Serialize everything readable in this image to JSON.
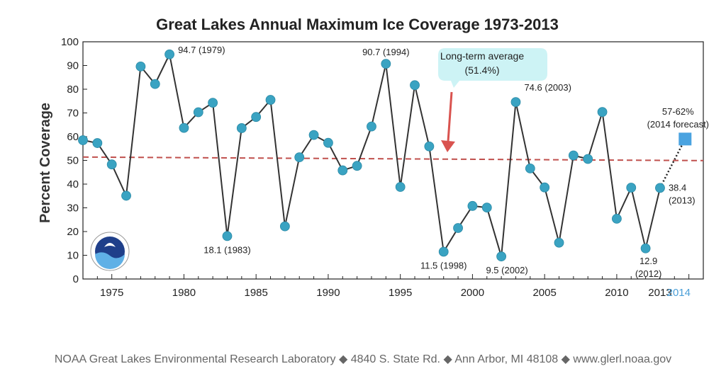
{
  "chart_data": {
    "type": "line",
    "title": "Great Lakes Annual Maximum Ice Coverage 1973-2013",
    "ylabel": "Percent Coverage",
    "xlim": [
      1973,
      2016
    ],
    "ylim": [
      0,
      100
    ],
    "y_ticks": [
      0,
      10,
      20,
      30,
      40,
      50,
      60,
      70,
      80,
      90,
      100
    ],
    "x_ticks": [
      "1975",
      "1980",
      "1985",
      "1990",
      "1995",
      "2000",
      "2005",
      "2010",
      "2013"
    ],
    "x_tick_values": [
      1975,
      1980,
      1985,
      1990,
      1995,
      2000,
      2005,
      2010,
      2013
    ],
    "forecast_tick": {
      "label": "2014",
      "x": 2014,
      "color": "#4a9fd8"
    },
    "grid": false,
    "series": [
      {
        "x": [
          1973,
          1974,
          1975,
          1976,
          1977,
          1978,
          1979,
          1980,
          1981,
          1982,
          1983,
          1984,
          1985,
          1986,
          1987,
          1988,
          1989,
          1990,
          1991,
          1992,
          1993,
          1994,
          1995,
          1996,
          1997,
          1998,
          1999,
          2000,
          2001,
          2002,
          2003,
          2004,
          2005,
          2006,
          2007,
          2008,
          2009,
          2010,
          2011,
          2012,
          2013
        ],
        "values": [
          58.5,
          57.3,
          48.3,
          35.1,
          89.6,
          82.2,
          94.7,
          63.7,
          70.3,
          74.3,
          18.1,
          63.6,
          68.3,
          75.5,
          22.2,
          51.3,
          60.7,
          57.4,
          45.8,
          47.7,
          64.3,
          90.7,
          38.8,
          81.7,
          55.9,
          11.5,
          21.5,
          30.8,
          30.1,
          9.5,
          74.6,
          46.6,
          38.6,
          15.3,
          52.1,
          50.6,
          70.4,
          25.4,
          38.5,
          12.9,
          38.4
        ],
        "color": "#333333",
        "marker_color": "#3aa3c2"
      }
    ],
    "average": {
      "value": 51.4,
      "color": "#c0504d",
      "style": "dashed"
    },
    "forecast": {
      "x": 2014,
      "value": 59.0,
      "range_label": "57-62%",
      "label": "(2014 forecast)",
      "color": "#4aa3e0"
    },
    "annotations": [
      {
        "x": 1979,
        "text": "94.7 (1979)"
      },
      {
        "x": 1983,
        "text": "18.1 (1983)"
      },
      {
        "x": 1994,
        "text": "90.7 (1994)"
      },
      {
        "x": 1998,
        "text": "11.5 (1998)"
      },
      {
        "x": 2002,
        "text": "9.5 (2002)"
      },
      {
        "x": 2003,
        "text": "74.6 (2003)"
      },
      {
        "x": 2012,
        "text_line1": "12.9",
        "text_line2": "(2012)"
      },
      {
        "x": 2013,
        "text_line1": "38.4",
        "text_line2": "(2013)"
      }
    ],
    "callout": {
      "line1": "Long-term average",
      "line2": "(51.4%)",
      "fill": "#cdf3f5",
      "arrow_color": "#d9534f"
    }
  },
  "footer": "NOAA Great Lakes Environmental Research Laboratory ◆ 4840 S. State Rd. ◆ Ann Arbor, MI 48108 ◆ www.glerl.noaa.gov"
}
